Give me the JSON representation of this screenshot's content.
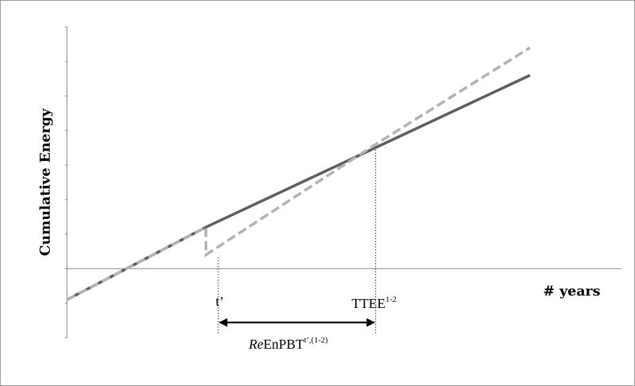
{
  "chart_data": {
    "type": "line",
    "ylabel": "Cumulative Energy",
    "xlabel": "# years",
    "series": [
      {
        "style": "solid",
        "color": "#5f5f5f",
        "x": [
          0,
          2.25,
          7.5
        ],
        "y": [
          -0.9,
          1.2,
          5.6
        ]
      },
      {
        "style": "dashed",
        "color": "#b3b3b3",
        "x": [
          0,
          2.25,
          2.25,
          5.0,
          7.5
        ],
        "y": [
          -0.9,
          1.2,
          0.4,
          3.6,
          6.4
        ]
      }
    ],
    "markers": [
      {
        "id": "t_prime",
        "label": "t’",
        "x": 2.45
      },
      {
        "id": "ttee",
        "label": "TTEE",
        "superscript": "1-2",
        "x": 5.0
      }
    ],
    "interval_annotation": {
      "prefix_italic": "Re",
      "text": "EnPBT",
      "superscript": "t’,(1-2)",
      "from": "t_prime",
      "to": "ttee"
    },
    "xlim": [
      0,
      7.5
    ],
    "ylim": [
      -2.0,
      7.0
    ],
    "grid": false,
    "legend": "none",
    "colors": {
      "axis": "#777777",
      "solid": "#5f5f5f",
      "dashed": "#b3b3b3",
      "arrow": "#000000"
    }
  }
}
